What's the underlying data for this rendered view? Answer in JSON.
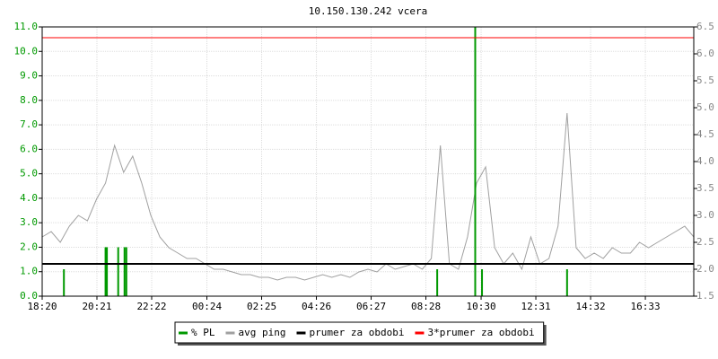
{
  "chart_data": {
    "type": "line",
    "title": "10.150.130.242 vcera",
    "grid": true,
    "legend": "bottom",
    "xlim": [
      0,
      1440
    ],
    "xticks": [
      {
        "value": 0,
        "label": "18:20"
      },
      {
        "value": 121,
        "label": "20:21"
      },
      {
        "value": 242,
        "label": "22:22"
      },
      {
        "value": 364,
        "label": "00:24"
      },
      {
        "value": 485,
        "label": "02:25"
      },
      {
        "value": 606,
        "label": "04:26"
      },
      {
        "value": 727,
        "label": "06:27"
      },
      {
        "value": 848,
        "label": "08:28"
      },
      {
        "value": 970,
        "label": "10:30"
      },
      {
        "value": 1091,
        "label": "12:31"
      },
      {
        "value": 1212,
        "label": "14:32"
      },
      {
        "value": 1333,
        "label": "16:33"
      }
    ],
    "ylim": [
      0,
      11
    ],
    "yticks": [
      {
        "value": 0,
        "label": "0.0"
      },
      {
        "value": 1,
        "label": "1.0"
      },
      {
        "value": 2,
        "label": "2.0"
      },
      {
        "value": 3,
        "label": "3.0"
      },
      {
        "value": 4,
        "label": "4.0"
      },
      {
        "value": 5,
        "label": "5.0"
      },
      {
        "value": 6,
        "label": "6.0"
      },
      {
        "value": 7,
        "label": "7.0"
      },
      {
        "value": 8,
        "label": "8.0"
      },
      {
        "value": 9,
        "label": "9.0"
      },
      {
        "value": 10,
        "label": "10.0"
      },
      {
        "value": 11,
        "label": "11.0"
      }
    ],
    "y2lim": [
      1.5,
      6.5
    ],
    "y2ticks": [
      1.5,
      {
        "value": 2,
        "label": "2.0"
      },
      2.5,
      {
        "value": 3,
        "label": "3.0"
      },
      3.5,
      {
        "value": 4,
        "label": "4.0"
      },
      4.5,
      {
        "value": 5,
        "label": "5.0"
      },
      5.5,
      {
        "value": 6,
        "label": "6.0"
      },
      6.5
    ],
    "series": [
      {
        "name": "% PL",
        "color": "#009900",
        "kind": "bar",
        "x": [
          48,
          140,
          143,
          168,
          182,
          186,
          873,
          957,
          972,
          1160
        ],
        "values": [
          1.1,
          2.0,
          2.0,
          2.0,
          2.0,
          2.0,
          1.1,
          11.0,
          1.1,
          1.1
        ]
      },
      {
        "name": "avg ping",
        "color": "#a0a0a0",
        "kind": "line",
        "axis": "y2",
        "x": [
          0,
          20,
          40,
          60,
          80,
          100,
          120,
          140,
          160,
          180,
          200,
          220,
          240,
          260,
          280,
          300,
          320,
          340,
          360,
          380,
          400,
          420,
          440,
          460,
          480,
          500,
          520,
          540,
          560,
          580,
          600,
          620,
          640,
          660,
          680,
          700,
          720,
          740,
          760,
          780,
          800,
          820,
          840,
          860,
          880,
          900,
          920,
          940,
          960,
          980,
          1000,
          1020,
          1040,
          1060,
          1080,
          1100,
          1120,
          1140,
          1160,
          1180,
          1200,
          1220,
          1240,
          1260,
          1280,
          1300,
          1320,
          1340,
          1360,
          1380,
          1400,
          1420,
          1440
        ],
        "values": [
          2.6,
          2.7,
          2.5,
          2.8,
          3.0,
          2.9,
          3.3,
          3.6,
          4.3,
          3.8,
          4.1,
          3.6,
          3.0,
          2.6,
          2.4,
          2.3,
          2.2,
          2.2,
          2.1,
          2.0,
          2.0,
          1.95,
          1.9,
          1.9,
          1.85,
          1.85,
          1.8,
          1.85,
          1.85,
          1.8,
          1.85,
          1.9,
          1.85,
          1.9,
          1.85,
          1.95,
          2.0,
          1.95,
          2.1,
          2.0,
          2.05,
          2.1,
          2.0,
          2.2,
          4.3,
          2.1,
          2.0,
          2.6,
          3.6,
          3.9,
          2.4,
          2.1,
          2.3,
          2.0,
          2.6,
          2.1,
          2.2,
          2.8,
          4.9,
          2.4,
          2.2,
          2.3,
          2.2,
          2.4,
          2.3,
          2.3,
          2.5,
          2.4,
          2.5,
          2.6,
          2.7,
          2.8,
          2.6
        ]
      },
      {
        "name": "prumer za obdobi",
        "color": "#000000",
        "kind": "hline",
        "axis": "y2",
        "value": 2.1
      },
      {
        "name": "3*prumer za obdobi",
        "color": "#ff0000",
        "kind": "hline",
        "axis": "y2",
        "value": 6.3
      }
    ]
  }
}
